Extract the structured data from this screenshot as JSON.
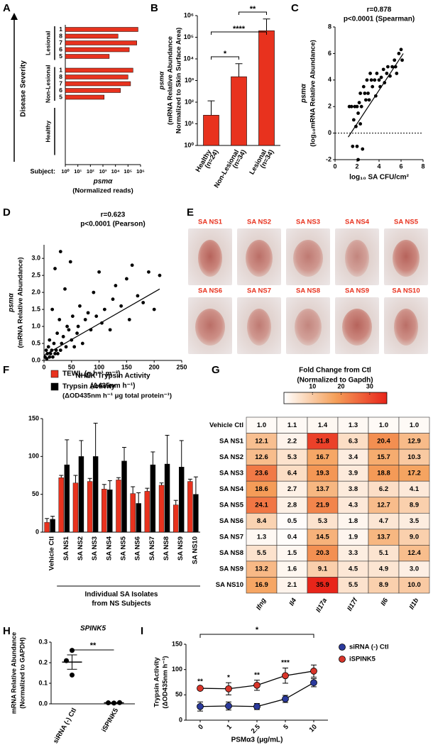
{
  "chart_data": [
    {
      "panel_label": "A",
      "type": "bar",
      "orientation": "horizontal",
      "y_label": "Disease Severity",
      "category_label": "Subject:",
      "x_label": "psmα",
      "x_label_2": "(Normalized reads)",
      "groups": [
        {
          "name": "Lesional",
          "categories": [
            "1",
            "8",
            "7",
            "6",
            "5"
          ],
          "values": [
            630000,
            16000,
            500000,
            126000,
            3200
          ]
        },
        {
          "name": "Non-Lesional",
          "categories": [
            "1",
            "8",
            "7",
            "6",
            "5"
          ],
          "values": [
            250000,
            100000,
            160000,
            25000,
            1260
          ]
        },
        {
          "name": "Healthy",
          "categories": [],
          "values": []
        }
      ],
      "color": "#e8321e",
      "xscale": "log",
      "xlim": [
        1,
        1000000
      ],
      "xticks": [
        {
          "value": 1,
          "label": "10⁰"
        },
        {
          "value": 10,
          "label": "10¹"
        },
        {
          "value": 100,
          "label": "10²"
        },
        {
          "value": 1000,
          "label": "10³"
        },
        {
          "value": 10000,
          "label": "10⁴"
        },
        {
          "value": 100000,
          "label": "10⁵"
        },
        {
          "value": 1000000,
          "label": "10⁶"
        }
      ]
    },
    {
      "panel_label": "B",
      "type": "bar",
      "y_label": "psmα",
      "y_label_2": "(mRNA Relative Abundance",
      "y_label_3": "Normalized to Skin Surface Area)",
      "categories": [
        "Healthy",
        "Non-Lesional",
        "Lesional"
      ],
      "category_notes": [
        "(n=24)",
        "(n=34)",
        "(n=34)"
      ],
      "values": [
        25,
        1500,
        200000
      ],
      "errors": [
        90,
        4500,
        500000
      ],
      "significance": [
        "*",
        "****",
        "**"
      ],
      "color": "#e8321e",
      "yscale": "log",
      "ylim": [
        1,
        1000000
      ],
      "yticks": [
        {
          "value": 1,
          "label": "10⁰"
        },
        {
          "value": 10,
          "label": "10¹"
        },
        {
          "value": 100,
          "label": "10²"
        },
        {
          "value": 1000,
          "label": "10³"
        },
        {
          "value": 10000,
          "label": "10⁴"
        },
        {
          "value": 100000,
          "label": "10⁵"
        },
        {
          "value": 1000000,
          "label": "10⁶"
        }
      ]
    },
    {
      "panel_label": "C",
      "type": "scatter",
      "annotation": "r=0.878",
      "annotation_2": "p<0.0001 (Spearman)",
      "x_label": "log₁₀ SA CFU/cm²",
      "y_label": "psmα",
      "y_label_2": "(log₁₀mRNA Relative Abundance)",
      "x": [
        1.3,
        1.5,
        1.6,
        1.7,
        1.8,
        1.9,
        2.0,
        2.0,
        2.1,
        2.1,
        2.2,
        2.3,
        2.3,
        2.4,
        2.5,
        2.6,
        2.7,
        2.8,
        2.9,
        3.0,
        3.1,
        3.2,
        3.3,
        3.4,
        3.6,
        3.7,
        3.8,
        4.0,
        4.1,
        4.2,
        4.4,
        4.5,
        4.7,
        4.8,
        5.0,
        5.2,
        5.4,
        5.5,
        5.6,
        5.8,
        6.0,
        6.1
      ],
      "values": [
        2,
        2,
        -1,
        1,
        2,
        0.5,
        -1,
        2,
        1.5,
        -2,
        2.3,
        0.7,
        3,
        2,
        -1.2,
        3.5,
        3,
        2.5,
        4,
        3,
        2.5,
        4.5,
        4,
        3.5,
        4,
        2.8,
        4.5,
        4,
        3.5,
        4.2,
        4.8,
        3.8,
        4.5,
        5,
        4.3,
        5,
        5.5,
        5,
        4.5,
        6,
        6.3,
        5.5
      ],
      "trend_line": {
        "x": [
          1.2,
          6.2
        ],
        "values": [
          -0.3,
          6
        ]
      },
      "reference_line": 0,
      "color": "#000000",
      "xlim": [
        0,
        8
      ],
      "xticks": [
        0,
        2,
        4,
        6,
        8
      ],
      "ylim": [
        -2,
        8
      ],
      "yticks": [
        -2,
        0,
        2,
        4,
        6,
        8
      ]
    },
    {
      "panel_label": "D",
      "type": "scatter",
      "annotation": "r=0.623",
      "annotation_2": "p<0.0001 (Pearson)",
      "x_label": "NHEK Trypsin Activity",
      "x_label_2": "(Δ435nm h⁻¹)",
      "y_label": "psmα",
      "y_label_2": "(mRNA Relative Abundance)",
      "x": [
        2,
        4,
        5,
        6,
        8,
        10,
        10,
        12,
        14,
        15,
        16,
        18,
        20,
        20,
        22,
        24,
        25,
        28,
        30,
        30,
        32,
        35,
        38,
        40,
        42,
        45,
        48,
        50,
        52,
        55,
        60,
        62,
        65,
        70,
        75,
        80,
        85,
        90,
        95,
        100,
        105,
        110,
        120,
        125,
        130,
        140,
        150,
        155,
        160,
        170,
        180,
        190,
        200,
        210
      ],
      "values": [
        0.1,
        0.3,
        0.05,
        0.2,
        0.4,
        0.1,
        0.6,
        0.2,
        0.3,
        1.5,
        0.1,
        0.5,
        0.2,
        2.7,
        0.3,
        0.8,
        0.2,
        1.2,
        0.3,
        3.2,
        0.5,
        0.7,
        2.1,
        0.4,
        1.0,
        0.9,
        2.9,
        0.6,
        1.3,
        0.4,
        0.8,
        1.0,
        1.6,
        0.5,
        1.2,
        1.4,
        0.9,
        2.0,
        1.3,
        2.6,
        1.1,
        1.5,
        0.9,
        1.8,
        2.2,
        1.6,
        2.4,
        1.2,
        2.8,
        1.9,
        1.7,
        2.6,
        1.5,
        2.5
      ],
      "trend_line": {
        "x": [
          0,
          210
        ],
        "values": [
          0.15,
          2.1
        ]
      },
      "color": "#000000",
      "xlim": [
        0,
        250
      ],
      "xticks": [
        0,
        50,
        100,
        150,
        200,
        250
      ],
      "ylim": [
        0,
        3.4
      ],
      "yticks": [
        {
          "value": 0,
          "label": "0.0"
        },
        0.5,
        {
          "value": 1,
          "label": "1.0"
        },
        1.5,
        {
          "value": 2,
          "label": "2.0"
        },
        2.5,
        {
          "value": 3,
          "label": "3.0"
        }
      ]
    },
    {
      "panel_label": "F",
      "type": "bar",
      "x_label": "Individual SA Isolates",
      "x_label_2": "from NS Subjects",
      "legend_note": "(ΔOD435nm h⁻¹ μg total protein⁻¹)",
      "categories": [
        "Vehicle Ctl",
        "SA NS1",
        "SA NS2",
        "SA NS3",
        "SA NS4",
        "SA NS5",
        "SA NS6",
        "SA NS7",
        "SA NS8",
        "SA NS9",
        "SA NS10"
      ],
      "series": [
        {
          "name": "TEWL (g h⁻¹ m⁻²)",
          "color": "#e8321e",
          "values": [
            13,
            72,
            65,
            67,
            57,
            69,
            51,
            54,
            62,
            36,
            67
          ],
          "errors": [
            5,
            3,
            10,
            4,
            6,
            3,
            9,
            4,
            3,
            6,
            3
          ]
        },
        {
          "name": "Trypsin Activity",
          "color": "#000000",
          "values": [
            17,
            89,
            100,
            100,
            56,
            94,
            38,
            89,
            90,
            86,
            50
          ],
          "errors": [
            4,
            33,
            21,
            44,
            12,
            18,
            14,
            17,
            38,
            35,
            23
          ]
        }
      ],
      "ylim": [
        0,
        150
      ],
      "yticks": [
        0,
        50,
        100,
        150
      ]
    },
    {
      "panel_label": "G",
      "type": "heatmap",
      "colorbar_title": "Fold Change from Ctl",
      "colorbar_title_2": "(Normalized to Gapdh)",
      "rows": [
        "Vehicle Ctl",
        "SA NS1",
        "SA NS2",
        "SA NS3",
        "SA NS4",
        "SA NS5",
        "SA NS6",
        "SA NS7",
        "SA NS8",
        "SA NS9",
        "SA NS10"
      ],
      "columns": [
        "Ifng",
        "Il4",
        "Il17a",
        "Il17f",
        "Il6",
        "Il1b"
      ],
      "values": [
        [
          1.0,
          1.1,
          1.4,
          1.3,
          1.0,
          1.0
        ],
        [
          12.1,
          2.2,
          31.8,
          6.3,
          20.4,
          12.9
        ],
        [
          12.6,
          5.3,
          16.7,
          3.4,
          15.7,
          10.3
        ],
        [
          23.6,
          6.4,
          19.3,
          3.9,
          18.8,
          17.2
        ],
        [
          18.6,
          2.7,
          13.7,
          3.8,
          6.2,
          4.1
        ],
        [
          24.1,
          2.8,
          21.9,
          4.3,
          12.7,
          8.9
        ],
        [
          8.4,
          0.5,
          5.3,
          1.8,
          4.7,
          3.5
        ],
        [
          1.3,
          0.4,
          14.5,
          1.9,
          13.7,
          9.0
        ],
        [
          5.5,
          1.5,
          20.3,
          3.3,
          5.1,
          12.4
        ],
        [
          13.2,
          1.6,
          9.1,
          4.5,
          4.9,
          3.0
        ],
        [
          16.9,
          2.1,
          35.9,
          5.5,
          8.9,
          10.0
        ]
      ],
      "value_labels": [
        [
          "1.0",
          "1.1",
          "1.4",
          "1.3",
          "1.0",
          "1.0"
        ],
        [
          "12.1",
          "2.2",
          "31.8",
          "6.3",
          "20.4",
          "12.9"
        ],
        [
          "12.6",
          "5.3",
          "16.7",
          "3.4",
          "15.7",
          "10.3"
        ],
        [
          "23.6",
          "6.4",
          "19.3",
          "3.9",
          "18.8",
          "17.2"
        ],
        [
          "18.6",
          "2.7",
          "13.7",
          "3.8",
          "6.2",
          "4.1"
        ],
        [
          "24.1",
          "2.8",
          "21.9",
          "4.3",
          "12.7",
          "8.9"
        ],
        [
          "8.4",
          "0.5",
          "5.3",
          "1.8",
          "4.7",
          "3.5"
        ],
        [
          "1.3",
          "0.4",
          "14.5",
          "1.9",
          "13.7",
          "9.0"
        ],
        [
          "5.5",
          "1.5",
          "20.3",
          "3.3",
          "5.1",
          "12.4"
        ],
        [
          "13.2",
          "1.6",
          "9.1",
          "4.5",
          "4.9",
          "3.0"
        ],
        [
          "16.9",
          "2.1",
          "35.9",
          "5.5",
          "8.9",
          "10.0"
        ]
      ],
      "clim": [
        0,
        36
      ],
      "colorbar_ticks": [
        10,
        20,
        30
      ],
      "colormap": [
        "#ffffff",
        "#f5a05a",
        "#e8241a"
      ]
    },
    {
      "panel_label": "H",
      "type": "dot",
      "title": "SPINK5",
      "y_label": "mRNA Relative Abundance",
      "y_label_2": "(Normalized to GAPDH)",
      "categories": [
        "siRNA (-) Ctl",
        "iSPINK5"
      ],
      "points": [
        [
          0.26,
          0.21,
          0.14
        ],
        [
          0.005,
          0.004,
          0.006
        ]
      ],
      "mean": [
        0.203,
        0.005
      ],
      "sem": [
        0.035,
        0.001
      ],
      "significance": "**",
      "color": "#000000",
      "ylim": [
        0,
        0.3
      ],
      "yticks": [
        {
          "value": 0,
          "label": "0.0"
        },
        0.1,
        0.2,
        0.3
      ]
    },
    {
      "panel_label": "I",
      "type": "line",
      "x_label": "PSMα3 (μg/mL)",
      "y_label": "Trypsin Activity",
      "y_label_2": "(ΔOD435nm h⁻¹)",
      "categories": [
        "0",
        "1",
        "2.5",
        "5",
        "10"
      ],
      "series": [
        {
          "name": "siRNA (-) Ctl",
          "color": "#2b3a9c",
          "values": [
            27,
            28,
            27,
            42,
            74
          ],
          "errors": [
            9,
            8,
            6,
            7,
            8
          ]
        },
        {
          "name": "iSPINK5",
          "color": "#d8352a",
          "values": [
            63,
            62,
            69,
            88,
            97
          ],
          "errors": [
            3,
            12,
            10,
            15,
            12
          ]
        }
      ],
      "point_labels": [
        "**",
        "*",
        "**",
        "***",
        null
      ],
      "significance": "*",
      "ylim": [
        0,
        150
      ],
      "yticks": [
        0,
        50,
        100,
        150
      ]
    }
  ],
  "photo_panel": {
    "panel_label": "E",
    "labels": [
      "SA NS1",
      "SA NS2",
      "SA NS3",
      "SA NS4",
      "SA NS5",
      "SA NS6",
      "SA NS7",
      "SA NS8",
      "SA NS9",
      "SA NS10"
    ]
  }
}
